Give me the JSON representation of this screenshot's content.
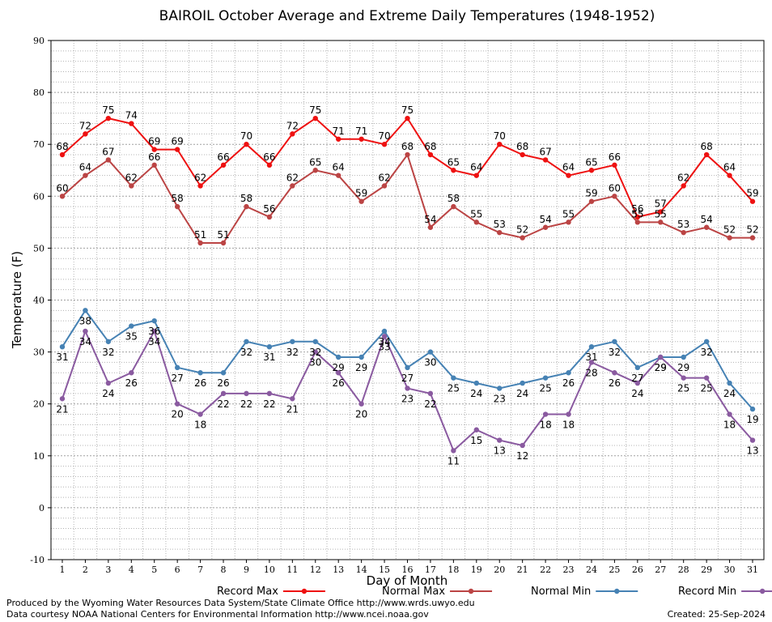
{
  "chart_data": {
    "type": "line",
    "title": "BAIROIL October Average and Extreme Daily Temperatures (1948-1952)",
    "xlabel": "Day of Month",
    "ylabel": "Temperature (F)",
    "ylim": [
      -10,
      90
    ],
    "xlim": [
      1,
      31
    ],
    "grid": true,
    "x": [
      1,
      2,
      3,
      4,
      5,
      6,
      7,
      8,
      9,
      10,
      11,
      12,
      13,
      14,
      15,
      16,
      17,
      18,
      19,
      20,
      21,
      22,
      23,
      24,
      25,
      26,
      27,
      28,
      29,
      30,
      31
    ],
    "yticks": [
      "-10",
      "0",
      "10",
      "20",
      "30",
      "40",
      "50",
      "60",
      "70",
      "80",
      "90"
    ],
    "xticks": [
      "1",
      "2",
      "3",
      "4",
      "5",
      "6",
      "7",
      "8",
      "9",
      "10",
      "11",
      "12",
      "13",
      "14",
      "15",
      "16",
      "17",
      "18",
      "19",
      "20",
      "21",
      "22",
      "23",
      "24",
      "25",
      "26",
      "27",
      "28",
      "29",
      "30",
      "31"
    ],
    "series": [
      {
        "name": "Record Max",
        "color": "#ee1111",
        "values": [
          68,
          72,
          75,
          74,
          69,
          69,
          62,
          66,
          70,
          66,
          72,
          75,
          71,
          71,
          70,
          75,
          68,
          65,
          64,
          70,
          68,
          67,
          64,
          65,
          66,
          56,
          57,
          62,
          68,
          64,
          59
        ]
      },
      {
        "name": "Normal Max",
        "color": "#bb4444",
        "values": [
          60,
          64,
          67,
          62,
          66,
          58,
          51,
          51,
          58,
          56,
          62,
          65,
          64,
          59,
          62,
          68,
          54,
          58,
          55,
          53,
          52,
          54,
          55,
          59,
          60,
          55,
          55,
          53,
          54,
          52,
          52
        ]
      },
      {
        "name": "Normal Min",
        "color": "#4682b4",
        "values": [
          31,
          38,
          32,
          35,
          36,
          27,
          26,
          26,
          32,
          31,
          32,
          32,
          29,
          29,
          34,
          27,
          30,
          25,
          24,
          23,
          24,
          25,
          26,
          31,
          32,
          27,
          29,
          29,
          32,
          24,
          19
        ]
      },
      {
        "name": "Record Min",
        "color": "#8a5aa0",
        "values": [
          21,
          34,
          24,
          26,
          34,
          20,
          18,
          22,
          22,
          22,
          21,
          30,
          26,
          20,
          33,
          23,
          22,
          11,
          15,
          13,
          12,
          18,
          18,
          28,
          26,
          24,
          29,
          25,
          25,
          18,
          13
        ]
      }
    ],
    "legend_position": "bottom"
  },
  "footer": {
    "produced_by": "Produced by the Wyoming Water Resources Data System/State Climate Office http://www.wrds.uwyo.edu",
    "courtesy": "Data courtesy NOAA National Centers for Environmental Information http://www.ncei.noaa.gov",
    "created": "Created:  25-Sep-2024"
  }
}
